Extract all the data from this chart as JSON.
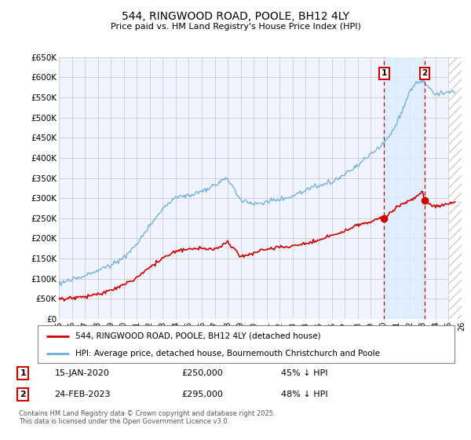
{
  "title": "544, RINGWOOD ROAD, POOLE, BH12 4LY",
  "subtitle": "Price paid vs. HM Land Registry's House Price Index (HPI)",
  "legend_entry1": "544, RINGWOOD ROAD, POOLE, BH12 4LY (detached house)",
  "legend_entry2": "HPI: Average price, detached house, Bournemouth Christchurch and Poole",
  "sale1_date": "15-JAN-2020",
  "sale1_price": "£250,000",
  "sale1_hpi": "45% ↓ HPI",
  "sale1_year": 2020.04,
  "sale1_price_val": 250000,
  "sale2_date": "24-FEB-2023",
  "sale2_price": "£295,000",
  "sale2_hpi": "48% ↓ HPI",
  "sale2_year": 2023.15,
  "sale2_price_val": 295000,
  "footer": "Contains HM Land Registry data © Crown copyright and database right 2025.\nThis data is licensed under the Open Government Licence v3.0.",
  "hpi_color": "#6baed6",
  "property_color": "#cc0000",
  "vline_color": "#cc0000",
  "shade_color": "#ddeeff",
  "bg_color": "#f0f4ff",
  "xmin": 1995,
  "xmax": 2026,
  "ymin": 0,
  "ymax": 650000
}
